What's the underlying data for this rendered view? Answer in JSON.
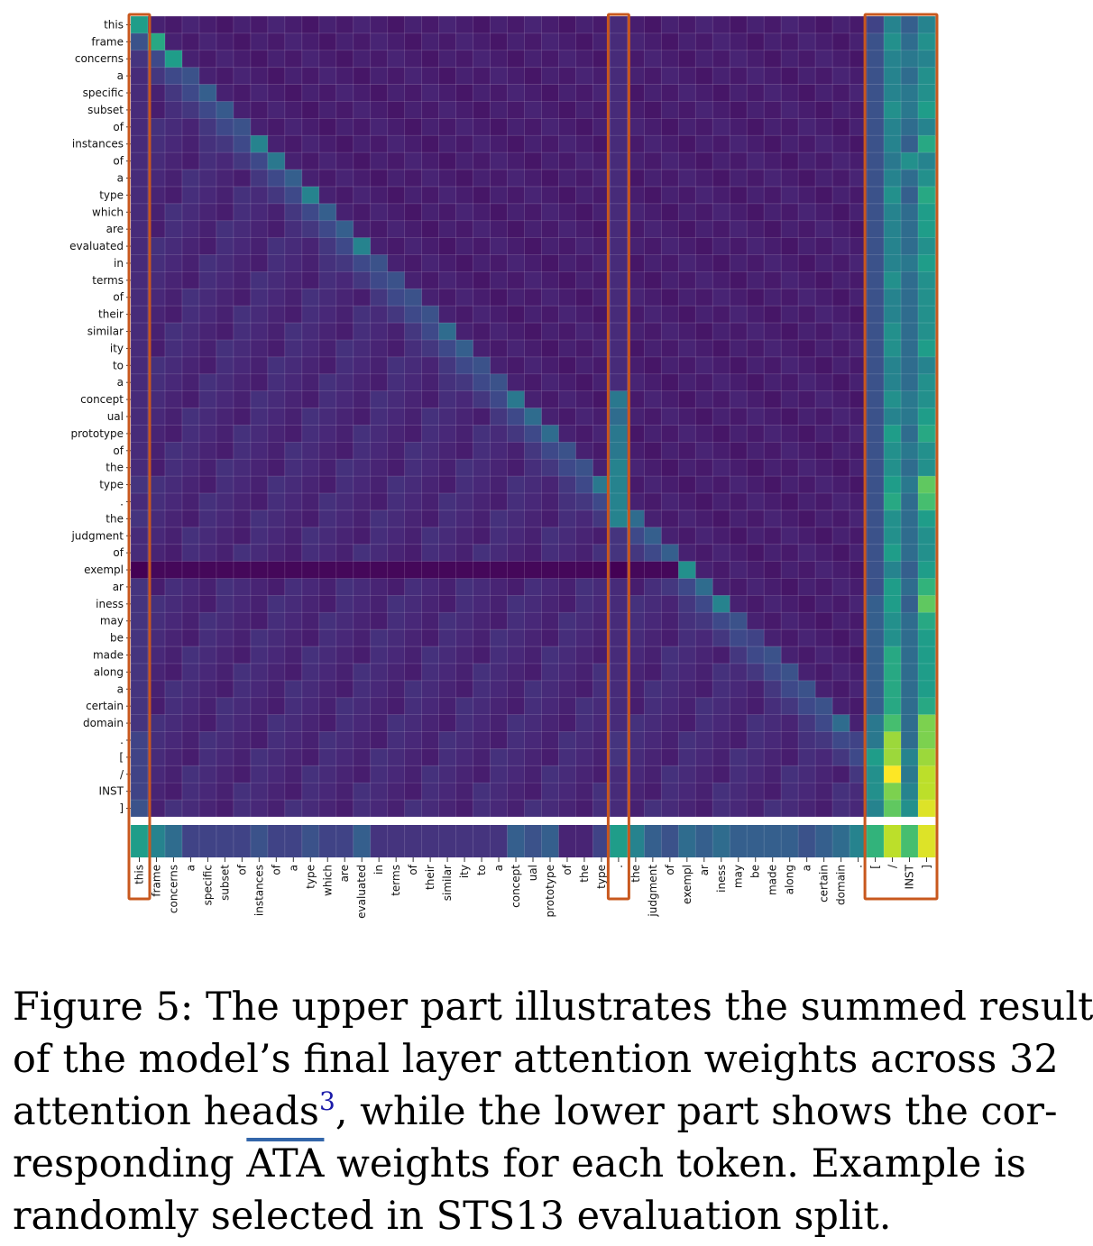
{
  "figure": {
    "tokens": [
      "this",
      "frame",
      "concerns",
      "a",
      "specific",
      "subset",
      "of",
      "instances",
      "of",
      "a",
      "type",
      "which",
      "are",
      "evaluated",
      "in",
      "terms",
      "of",
      "their",
      "similar",
      "ity",
      "to",
      "a",
      "concept",
      "ual",
      "prototype",
      "of",
      "the",
      "type",
      ".",
      "the",
      "judgment",
      "of",
      "exempl",
      "ar",
      "iness",
      "may",
      "be",
      "made",
      "along",
      "a",
      "certain",
      "domain",
      ".",
      "[",
      "/",
      "INST",
      "]"
    ],
    "highlight_groups": [
      [
        0,
        0
      ],
      [
        28,
        28
      ],
      [
        43,
        46
      ]
    ],
    "colors": {
      "highlight_box": "#c8581e",
      "separator": "#ffffff",
      "cmap": [
        "#440154",
        "#482878",
        "#3e4a89",
        "#31688e",
        "#26828e",
        "#1f9e89",
        "#35b779",
        "#6ece58",
        "#b5de2b",
        "#fde725"
      ]
    }
  },
  "chart_data": {
    "type": "heatmap",
    "title": "",
    "xlabel": "",
    "ylabel": "",
    "x": [
      "this",
      "frame",
      "concerns",
      "a",
      "specific",
      "subset",
      "of",
      "instances",
      "of",
      "a",
      "type",
      "which",
      "are",
      "evaluated",
      "in",
      "terms",
      "of",
      "their",
      "similar",
      "ity",
      "to",
      "a",
      "concept",
      "ual",
      "prototype",
      "of",
      "the",
      "type",
      ".",
      "the",
      "judgment",
      "of",
      "exempl",
      "ar",
      "iness",
      "may",
      "be",
      "made",
      "along",
      "a",
      "certain",
      "domain",
      ".",
      "[",
      "/",
      "INST",
      "]"
    ],
    "y": [
      "this",
      "frame",
      "concerns",
      "a",
      "specific",
      "subset",
      "of",
      "instances",
      "of",
      "a",
      "type",
      "which",
      "are",
      "evaluated",
      "in",
      "terms",
      "of",
      "their",
      "similar",
      "ity",
      "to",
      "a",
      "concept",
      "ual",
      "prototype",
      "of",
      "the",
      "type",
      ".",
      "the",
      "judgment",
      "of",
      "exempl",
      "ar",
      "iness",
      "may",
      "be",
      "made",
      "along",
      "a",
      "certain",
      "domain",
      ".",
      "[",
      "/",
      "INST",
      "]"
    ],
    "value_range": [
      0,
      1
    ],
    "colorscale": "viridis",
    "diagonal": [
      0.55,
      0.6,
      0.55,
      0.25,
      0.3,
      0.28,
      0.25,
      0.45,
      0.4,
      0.3,
      0.45,
      0.3,
      0.3,
      0.45,
      0.25,
      0.25,
      0.25,
      0.25,
      0.35,
      0.3,
      0.25,
      0.25,
      0.4,
      0.35,
      0.35,
      0.25,
      0.25,
      0.4,
      0.45,
      0.35,
      0.3,
      0.3,
      0.5,
      0.35,
      0.45,
      0.25,
      0.2,
      0.25,
      0.25,
      0.25,
      0.25,
      0.35,
      0.2,
      0.35,
      0.2,
      0.3,
      0.55
    ],
    "first_column": [
      0.55,
      0.25,
      0.15,
      0.12,
      0.12,
      0.12,
      0.12,
      0.12,
      0.12,
      0.12,
      0.12,
      0.12,
      0.12,
      0.12,
      0.12,
      0.12,
      0.12,
      0.12,
      0.12,
      0.12,
      0.12,
      0.12,
      0.12,
      0.12,
      0.12,
      0.12,
      0.12,
      0.15,
      0.12,
      0.15,
      0.12,
      0.12,
      0.0,
      0.15,
      0.15,
      0.15,
      0.15,
      0.15,
      0.15,
      0.15,
      0.15,
      0.15,
      0.2,
      0.2,
      0.2,
      0.2,
      0.25
    ],
    "period_column": [
      0.12,
      0.12,
      0.12,
      0.12,
      0.12,
      0.12,
      0.12,
      0.12,
      0.12,
      0.12,
      0.12,
      0.12,
      0.12,
      0.12,
      0.12,
      0.12,
      0.12,
      0.12,
      0.12,
      0.12,
      0.12,
      0.12,
      0.4,
      0.35,
      0.4,
      0.4,
      0.45,
      0.45,
      0.5,
      0.45,
      0.15,
      0.15,
      0.0,
      0.12,
      0.12,
      0.12,
      0.12,
      0.12,
      0.12,
      0.12,
      0.12,
      0.12,
      0.15,
      0.15,
      0.12,
      0.12,
      0.12
    ],
    "inst_columns": {
      "[": [
        0.2,
        0.25,
        0.25,
        0.25,
        0.25,
        0.25,
        0.25,
        0.25,
        0.25,
        0.25,
        0.25,
        0.25,
        0.25,
        0.25,
        0.25,
        0.25,
        0.25,
        0.25,
        0.25,
        0.25,
        0.25,
        0.25,
        0.25,
        0.25,
        0.25,
        0.25,
        0.25,
        0.25,
        0.25,
        0.25,
        0.25,
        0.25,
        0.25,
        0.25,
        0.3,
        0.3,
        0.3,
        0.3,
        0.3,
        0.3,
        0.3,
        0.4,
        0.4,
        0.55,
        0.5,
        0.5,
        0.45
      ],
      "/": [
        0.45,
        0.5,
        0.45,
        0.45,
        0.45,
        0.5,
        0.45,
        0.45,
        0.4,
        0.45,
        0.5,
        0.45,
        0.45,
        0.45,
        0.45,
        0.5,
        0.45,
        0.45,
        0.5,
        0.5,
        0.45,
        0.45,
        0.5,
        0.45,
        0.55,
        0.5,
        0.5,
        0.55,
        0.6,
        0.5,
        0.5,
        0.55,
        0.45,
        0.55,
        0.55,
        0.5,
        0.5,
        0.6,
        0.6,
        0.6,
        0.6,
        0.7,
        0.85,
        0.85,
        1.0,
        0.8,
        0.75
      ],
      "INST": [
        0.3,
        0.35,
        0.4,
        0.35,
        0.4,
        0.4,
        0.35,
        0.3,
        0.5,
        0.35,
        0.3,
        0.35,
        0.35,
        0.35,
        0.4,
        0.35,
        0.35,
        0.35,
        0.35,
        0.35,
        0.35,
        0.35,
        0.4,
        0.4,
        0.35,
        0.4,
        0.35,
        0.4,
        0.35,
        0.35,
        0.35,
        0.35,
        0.3,
        0.35,
        0.3,
        0.35,
        0.35,
        0.35,
        0.35,
        0.35,
        0.35,
        0.35,
        0.35,
        0.45,
        0.4,
        0.45,
        0.5
      ],
      "]": [
        0.45,
        0.5,
        0.45,
        0.5,
        0.5,
        0.55,
        0.45,
        0.6,
        0.45,
        0.5,
        0.6,
        0.55,
        0.55,
        0.5,
        0.55,
        0.5,
        0.5,
        0.5,
        0.5,
        0.55,
        0.45,
        0.5,
        0.5,
        0.55,
        0.6,
        0.5,
        0.5,
        0.75,
        0.7,
        0.55,
        0.5,
        0.5,
        0.55,
        0.65,
        0.75,
        0.6,
        0.55,
        0.55,
        0.55,
        0.55,
        0.6,
        0.8,
        0.8,
        0.85,
        0.9,
        0.9,
        0.95
      ]
    },
    "ata_weights": [
      0.55,
      0.45,
      0.35,
      0.2,
      0.2,
      0.2,
      0.2,
      0.25,
      0.2,
      0.2,
      0.25,
      0.2,
      0.2,
      0.3,
      0.15,
      0.15,
      0.15,
      0.15,
      0.15,
      0.15,
      0.15,
      0.15,
      0.3,
      0.25,
      0.3,
      0.1,
      0.1,
      0.2,
      0.55,
      0.45,
      0.3,
      0.25,
      0.35,
      0.3,
      0.35,
      0.3,
      0.3,
      0.3,
      0.3,
      0.25,
      0.3,
      0.35,
      0.45,
      0.65,
      0.9,
      0.7,
      0.95
    ]
  },
  "caption": {
    "lines": [
      {
        "text": "Figure 5: The upper part illustrates the summed result"
      },
      {
        "text": "of the model’s final layer attention weights across 32"
      },
      {
        "pre": "attention heads",
        "sup": "3",
        "post": ", while the lower part shows the cor-"
      },
      {
        "pre": "responding ",
        "over": "ATA",
        "post": " weights for each token.  Example is"
      },
      {
        "text": "randomly selected in STS13 evaluation split."
      }
    ]
  }
}
